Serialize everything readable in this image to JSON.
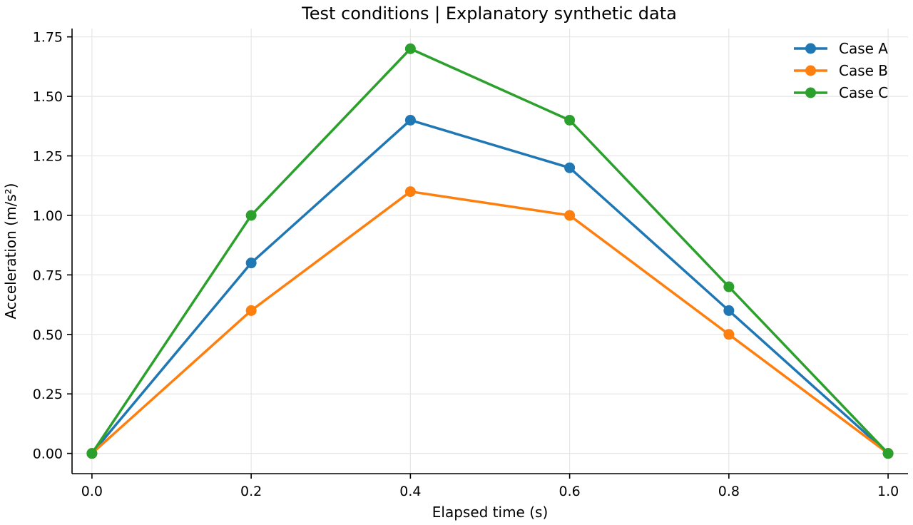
{
  "chart_data": {
    "type": "line",
    "title": "Test conditions | Explanatory synthetic data",
    "xlabel": "Elapsed time (s)",
    "ylabel": "Acceleration (m/s²)",
    "x": [
      0.0,
      0.2,
      0.4,
      0.6,
      0.8,
      1.0
    ],
    "xlim": [
      -0.025,
      1.025
    ],
    "ylim": [
      -0.085,
      1.785
    ],
    "x_ticks": [
      0.0,
      0.2,
      0.4,
      0.6,
      0.8,
      1.0
    ],
    "x_tick_labels": [
      "0.0",
      "0.2",
      "0.4",
      "0.6",
      "0.8",
      "1.0"
    ],
    "y_ticks": [
      0.0,
      0.25,
      0.5,
      0.75,
      1.0,
      1.25,
      1.5,
      1.75
    ],
    "y_tick_labels": [
      "0.00",
      "0.25",
      "0.50",
      "0.75",
      "1.00",
      "1.25",
      "1.50",
      "1.75"
    ],
    "grid": true,
    "legend_position": "top-right",
    "series": [
      {
        "name": "Case A",
        "color": "#1f77b4",
        "values": [
          0.0,
          0.8,
          1.4,
          1.2,
          0.6,
          0.0
        ]
      },
      {
        "name": "Case B",
        "color": "#ff7f0e",
        "values": [
          0.0,
          0.6,
          1.1,
          1.0,
          0.5,
          0.0
        ]
      },
      {
        "name": "Case C",
        "color": "#2ca02c",
        "values": [
          0.0,
          1.0,
          1.7,
          1.4,
          0.7,
          0.0
        ]
      }
    ]
  }
}
